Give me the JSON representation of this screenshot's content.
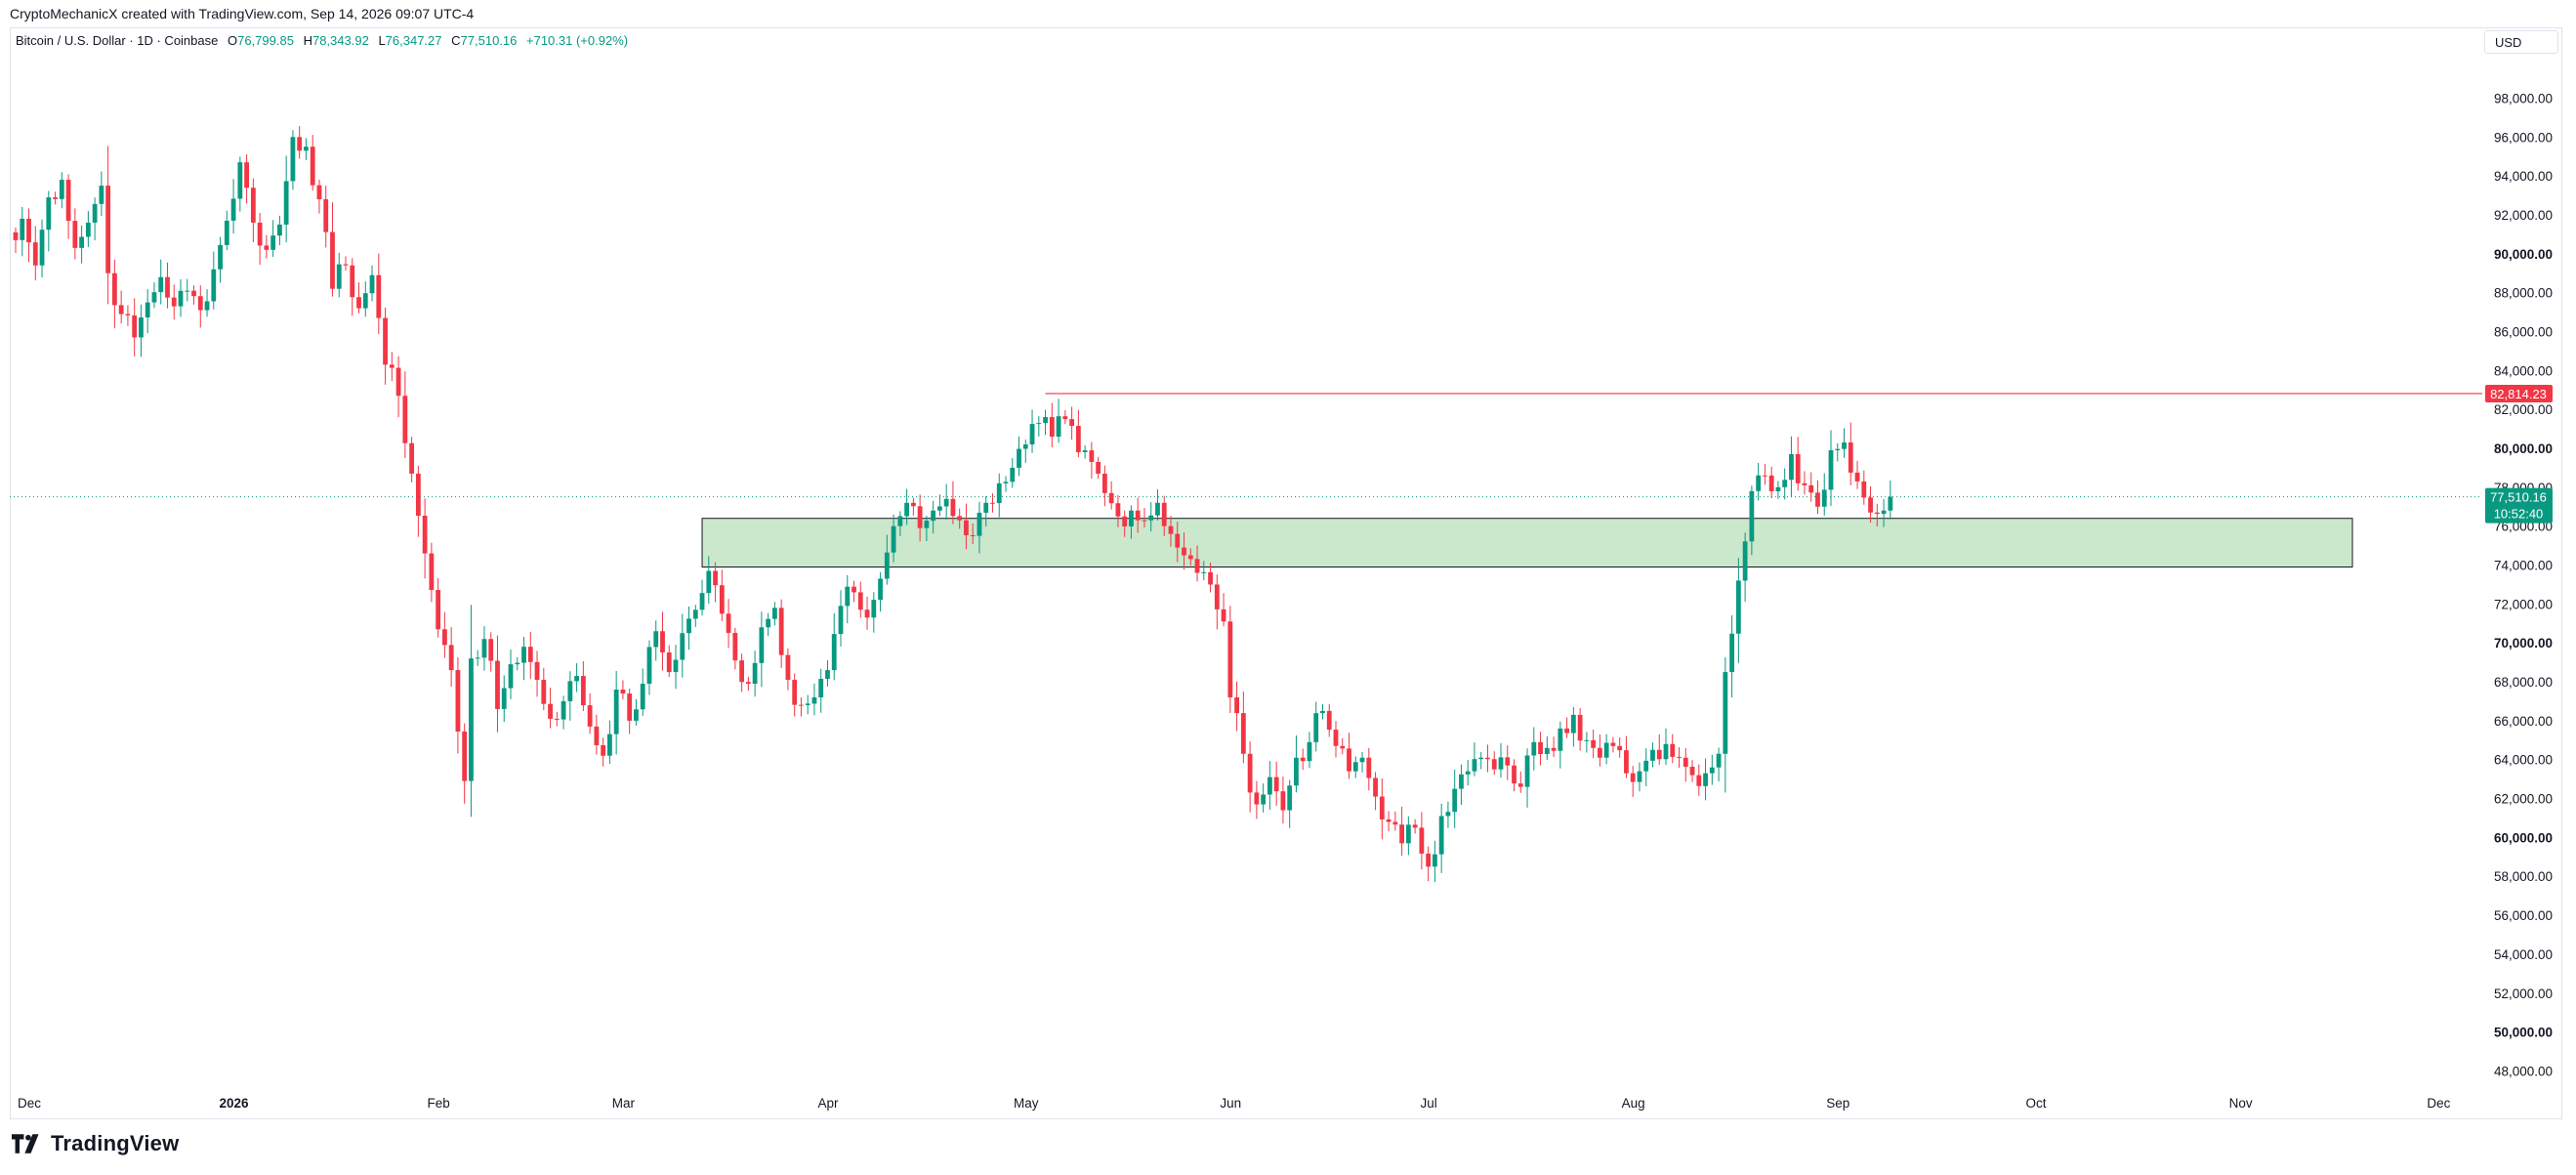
{
  "header": {
    "attribution": "CryptoMechanicX created with TradingView.com, Sep 14, 2026 09:07 UTC-4"
  },
  "legend": {
    "symbol": "Bitcoin / U.S. Dollar · 1D · Coinbase",
    "open_label": "O",
    "open": "76,799.85",
    "high_label": "H",
    "high": "78,343.92",
    "low_label": "L",
    "low": "76,347.27",
    "close_label": "C",
    "close": "77,510.16",
    "change": "+710.31 (+0.92%)"
  },
  "currency_button": "USD",
  "brand": "TradingView",
  "colors": {
    "up": "#089981",
    "down": "#f23645",
    "zone_fill": "#c8e6c9",
    "resistance": "#f23645"
  },
  "chart_data": {
    "type": "candlestick",
    "y_axis": {
      "ylim": [
        47000,
        99500
      ],
      "ticks": [
        48000,
        50000,
        52000,
        54000,
        56000,
        58000,
        60000,
        62000,
        64000,
        66000,
        68000,
        70000,
        72000,
        74000,
        76000,
        78000,
        80000,
        82000,
        84000,
        86000,
        88000,
        90000,
        92000,
        94000,
        96000,
        98000
      ],
      "tick_labels": [
        "48,000.00",
        "50,000.00",
        "52,000.00",
        "54,000.00",
        "56,000.00",
        "58,000.00",
        "60,000.00",
        "62,000.00",
        "64,000.00",
        "66,000.00",
        "68,000.00",
        "70,000.00",
        "72,000.00",
        "74,000.00",
        "76,000.00",
        "78,000.00",
        "80,000.00",
        "82,000.00",
        "84,000.00",
        "86,000.00",
        "88,000.00",
        "90,000.00",
        "92,000.00",
        "94,000.00",
        "96,000.00",
        "98,000.00"
      ],
      "bold_ticks": [
        50000,
        60000,
        70000,
        80000,
        90000
      ]
    },
    "x_axis": {
      "labels": [
        "Dec",
        "2026",
        "Feb",
        "Mar",
        "Apr",
        "May",
        "Jun",
        "Jul",
        "Aug",
        "Sep",
        "Oct",
        "Nov",
        "Dec"
      ],
      "label_day_index": [
        0,
        31,
        62,
        90,
        121,
        151,
        182,
        212,
        243,
        274,
        304,
        335,
        365
      ],
      "bold_labels": [
        "2026"
      ]
    },
    "resistance": {
      "value": 82814.23,
      "label": "82,814.23",
      "start_day": 156
    },
    "current_price": {
      "value": 77510.16,
      "label": "77,510.16",
      "countdown": "10:52:40"
    },
    "demand_zone": {
      "low": 73900,
      "high": 76400,
      "start_day": 104,
      "end_day": 354
    },
    "series": [
      {
        "name": "",
        "anchors": [
          [
            0,
            90700
          ],
          [
            1,
            91800
          ],
          [
            3,
            89400
          ],
          [
            5,
            92900
          ],
          [
            7,
            93800
          ],
          [
            9,
            90300
          ],
          [
            11,
            91600
          ],
          [
            13,
            93500
          ],
          [
            14,
            89000
          ],
          [
            16,
            86900
          ],
          [
            18,
            85700
          ],
          [
            20,
            87500
          ],
          [
            22,
            88800
          ],
          [
            24,
            87300
          ],
          [
            26,
            88100
          ],
          [
            28,
            87100
          ],
          [
            30,
            89200
          ],
          [
            32,
            91700
          ],
          [
            34,
            94700
          ],
          [
            36,
            91600
          ],
          [
            38,
            90200
          ],
          [
            40,
            91500
          ],
          [
            42,
            96000
          ],
          [
            44,
            95500
          ],
          [
            46,
            92800
          ],
          [
            48,
            88200
          ],
          [
            50,
            89400
          ],
          [
            52,
            87200
          ],
          [
            54,
            88900
          ],
          [
            55,
            86700
          ],
          [
            56,
            84300
          ],
          [
            58,
            82700
          ],
          [
            60,
            78700
          ],
          [
            62,
            74600
          ],
          [
            64,
            70700
          ],
          [
            66,
            68600
          ],
          [
            68,
            62900
          ],
          [
            69,
            69200
          ],
          [
            71,
            70200
          ],
          [
            73,
            66600
          ],
          [
            75,
            68900
          ],
          [
            77,
            69800
          ],
          [
            79,
            68100
          ],
          [
            81,
            66100
          ],
          [
            83,
            67000
          ],
          [
            85,
            68300
          ],
          [
            87,
            65700
          ],
          [
            89,
            64200
          ],
          [
            91,
            67600
          ],
          [
            93,
            66000
          ],
          [
            95,
            67900
          ],
          [
            97,
            70600
          ],
          [
            99,
            68500
          ],
          [
            101,
            70500
          ],
          [
            103,
            71700
          ],
          [
            105,
            73700
          ],
          [
            107,
            71500
          ],
          [
            109,
            69100
          ],
          [
            111,
            67900
          ],
          [
            113,
            70800
          ],
          [
            115,
            71800
          ],
          [
            117,
            68100
          ],
          [
            119,
            66800
          ],
          [
            121,
            67200
          ],
          [
            123,
            68600
          ],
          [
            125,
            71900
          ],
          [
            127,
            72600
          ],
          [
            129,
            71300
          ],
          [
            131,
            73300
          ],
          [
            133,
            76000
          ],
          [
            135,
            77200
          ],
          [
            137,
            75900
          ],
          [
            139,
            76800
          ],
          [
            141,
            77400
          ],
          [
            143,
            76300
          ],
          [
            145,
            75500
          ],
          [
            147,
            77200
          ],
          [
            149,
            78200
          ],
          [
            151,
            79000
          ],
          [
            153,
            80200
          ],
          [
            155,
            81300
          ],
          [
            157,
            80600
          ],
          [
            159,
            81500
          ],
          [
            161,
            79800
          ],
          [
            163,
            79300
          ],
          [
            165,
            77700
          ],
          [
            167,
            76500
          ],
          [
            169,
            76800
          ],
          [
            171,
            76300
          ],
          [
            173,
            77200
          ],
          [
            175,
            75600
          ],
          [
            177,
            74500
          ],
          [
            179,
            73600
          ],
          [
            181,
            73000
          ],
          [
            183,
            71100
          ],
          [
            184,
            67200
          ],
          [
            186,
            64300
          ],
          [
            188,
            61700
          ],
          [
            190,
            63100
          ],
          [
            192,
            61400
          ],
          [
            194,
            64100
          ],
          [
            196,
            64900
          ],
          [
            198,
            66500
          ],
          [
            200,
            64700
          ],
          [
            202,
            63400
          ],
          [
            204,
            64100
          ],
          [
            206,
            62100
          ],
          [
            208,
            60800
          ],
          [
            210,
            59700
          ],
          [
            212,
            60500
          ],
          [
            214,
            58500
          ],
          [
            216,
            61100
          ],
          [
            218,
            62500
          ],
          [
            220,
            63400
          ],
          [
            222,
            64100
          ],
          [
            224,
            63500
          ],
          [
            226,
            63700
          ],
          [
            228,
            62600
          ],
          [
            230,
            64900
          ],
          [
            232,
            64600
          ],
          [
            234,
            65600
          ],
          [
            236,
            66300
          ],
          [
            238,
            65000
          ],
          [
            240,
            64100
          ],
          [
            242,
            64700
          ],
          [
            244,
            63300
          ],
          [
            246,
            63400
          ],
          [
            248,
            64500
          ],
          [
            250,
            64800
          ],
          [
            252,
            64100
          ],
          [
            254,
            63200
          ],
          [
            256,
            63300
          ],
          [
            258,
            64300
          ],
          [
            259,
            68500
          ],
          [
            261,
            73200
          ],
          [
            263,
            77800
          ],
          [
            265,
            78600
          ],
          [
            267,
            78000
          ],
          [
            269,
            79700
          ],
          [
            271,
            78100
          ],
          [
            273,
            77000
          ],
          [
            275,
            79900
          ],
          [
            277,
            80300
          ],
          [
            279,
            78300
          ],
          [
            281,
            76700
          ],
          [
            283,
            76799.85
          ],
          [
            284,
            77510.16
          ]
        ]
      }
    ]
  }
}
